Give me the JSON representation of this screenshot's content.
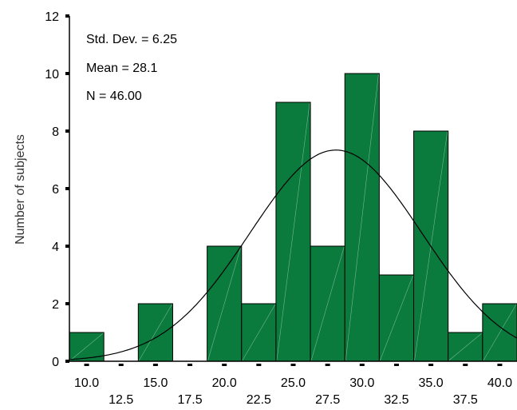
{
  "chart_data": {
    "type": "bar",
    "title": "",
    "xlabel": "",
    "ylabel": "Number of subjects",
    "bin_width": 2.5,
    "bin_centers": [
      10.0,
      12.5,
      15.0,
      17.5,
      20.0,
      22.5,
      25.0,
      27.5,
      30.0,
      32.5,
      35.0,
      37.5,
      40.0
    ],
    "values": [
      1,
      0,
      2,
      0,
      4,
      2,
      9,
      4,
      10,
      3,
      8,
      1,
      2
    ],
    "xlim": [
      8.75,
      41.25
    ],
    "ylim": [
      0,
      12
    ],
    "yticks": [
      0,
      2,
      4,
      6,
      8,
      10,
      12
    ],
    "xticks_upper": [
      "10.0",
      "15.0",
      "20.0",
      "25.0",
      "30.0",
      "35.0",
      "40.0"
    ],
    "xticks_lower": [
      "12.5",
      "17.5",
      "22.5",
      "27.5",
      "32.5",
      "37.5"
    ],
    "stats": {
      "std_dev": "Std. Dev. = 6.25",
      "mean": "Mean = 28.1",
      "n": "N = 46.00"
    },
    "normal_curve": {
      "mean": 28.1,
      "sd": 6.25,
      "n": 46
    },
    "bar_color": "#0b7a3d",
    "grid": false,
    "legend": "none"
  }
}
